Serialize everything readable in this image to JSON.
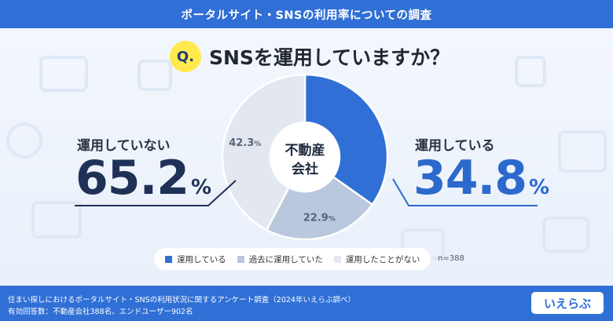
{
  "header": {
    "title": "ポータルサイト・SNSの利用率についての調査"
  },
  "question": {
    "badge": "Q.",
    "text": "SNSを運用していますか？"
  },
  "center_label": {
    "line1": "不動産",
    "line2": "会社"
  },
  "left_stat": {
    "label": "運用していない",
    "value": "65.2",
    "unit": "%"
  },
  "right_stat": {
    "label": "運用している",
    "value": "34.8",
    "unit": "%"
  },
  "note": "n=388",
  "footer": {
    "line1": "住まい探しにおけるポータルサイト・SNSの利用状況に関するアンケート調査（2024年いえらぶ調べ）",
    "line2": "有効回答数：不動産会社388名、エンドユーザー902名"
  },
  "logo": {
    "text": "いえらぶ"
  },
  "colors": {
    "primary": "#2f6fd6",
    "series": [
      "#2f6fd6",
      "#b9c8dd",
      "#e3e8f0"
    ]
  },
  "chart_data": {
    "type": "pie",
    "variant": "donut",
    "title": "SNSを運用していますか？",
    "center_label": "不動産会社",
    "categories": [
      "運用している",
      "過去に運用していた",
      "運用したことがない"
    ],
    "values": [
      34.8,
      22.9,
      42.3
    ],
    "data_labels": [
      "",
      "22.9",
      "42.3"
    ],
    "unit": "%",
    "legend_position": "bottom",
    "n": 388
  }
}
